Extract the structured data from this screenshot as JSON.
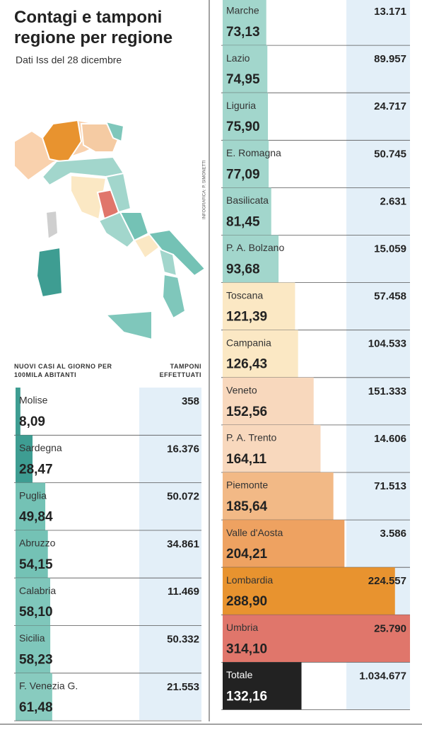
{
  "chart_data": {
    "type": "bar",
    "title": "Contagi e tamponi regione per regione",
    "subtitle": "Dati Iss del 28 dicembre",
    "credit": "INFOGRAFICA: P. SIMONETTI",
    "value_header": "NUOVI CASI AL GIORNO PER 100MILA ABITANTI",
    "tests_header": "TAMPONI EFFETTUATI",
    "categories": [
      "Molise",
      "Sardegna",
      "Puglia",
      "Abruzzo",
      "Calabria",
      "Sicilia",
      "F. Venezia G.",
      "Marche",
      "Lazio",
      "Liguria",
      "E. Romagna",
      "Basilicata",
      "P. A. Bolzano",
      "Toscana",
      "Campania",
      "Veneto",
      "P. A. Trento",
      "Piemonte",
      "Valle d'Aosta",
      "Lombardia",
      "Umbria",
      "Totale"
    ],
    "values": [
      8.09,
      28.47,
      49.84,
      54.15,
      58.1,
      58.23,
      61.48,
      73.13,
      74.95,
      75.9,
      77.09,
      81.45,
      93.68,
      121.39,
      126.43,
      152.56,
      164.11,
      185.64,
      204.21,
      288.9,
      314.1,
      132.16
    ],
    "value_labels": [
      "8,09",
      "28,47",
      "49,84",
      "54,15",
      "58,10",
      "58,23",
      "61,48",
      "73,13",
      "74,95",
      "75,90",
      "77,09",
      "81,45",
      "93,68",
      "121,39",
      "126,43",
      "152,56",
      "164,11",
      "185,64",
      "204,21",
      "288,90",
      "314,10",
      "132,16"
    ],
    "tests": [
      "358",
      "16.376",
      "50.072",
      "34.861",
      "11.469",
      "50.332",
      "21.553",
      "13.171",
      "89.957",
      "24.717",
      "50.745",
      "2.631",
      "15.059",
      "57.458",
      "104.533",
      "151.333",
      "14.606",
      "71.513",
      "3.586",
      "224.557",
      "25.790",
      "1.034.677"
    ],
    "colors": [
      "#3e9d92",
      "#3e9d92",
      "#74c2b5",
      "#74c2b5",
      "#7fc7bb",
      "#7fc7bb",
      "#88cbbf",
      "#a2d6cc",
      "#a2d6cc",
      "#a2d6cc",
      "#a2d6cc",
      "#a2d6cc",
      "#a2d6cc",
      "#fbe8c4",
      "#fbe8c4",
      "#f8d8bd",
      "#f8d8bd",
      "#f2b986",
      "#eea261",
      "#e8932f",
      "#e0766b",
      "#222222"
    ],
    "xlim": [
      0,
      320
    ]
  }
}
